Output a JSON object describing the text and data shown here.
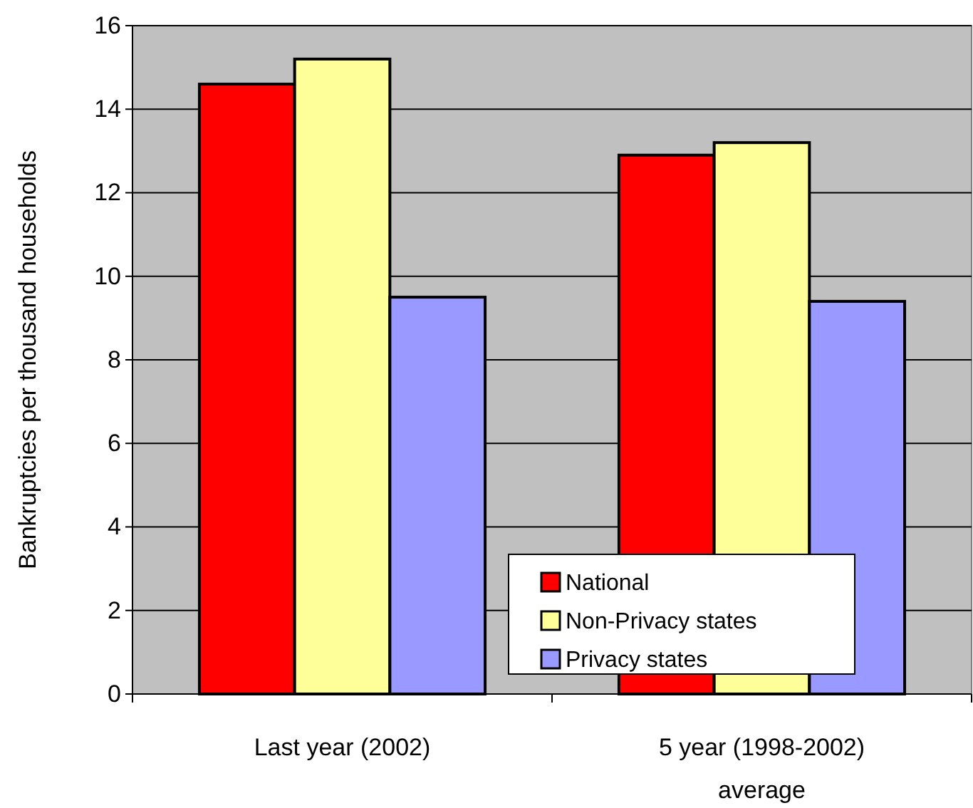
{
  "chart_data": {
    "type": "bar",
    "ylabel": "Bankruptcies per thousand households",
    "categories": [
      "Last year (2002)",
      "5 year (1998-2002) average"
    ],
    "series": [
      {
        "name": "National",
        "color": "#ff0000",
        "values": [
          14.6,
          12.9
        ]
      },
      {
        "name": "Non-Privacy states",
        "color": "#ffff99",
        "values": [
          15.2,
          13.2
        ]
      },
      {
        "name": "Privacy states",
        "color": "#9999ff",
        "values": [
          9.5,
          9.4
        ]
      }
    ],
    "ylim": [
      0,
      16
    ],
    "yticks": [
      0,
      2,
      4,
      6,
      8,
      10,
      12,
      14,
      16
    ],
    "grid": "y",
    "legend": "bottom right"
  }
}
